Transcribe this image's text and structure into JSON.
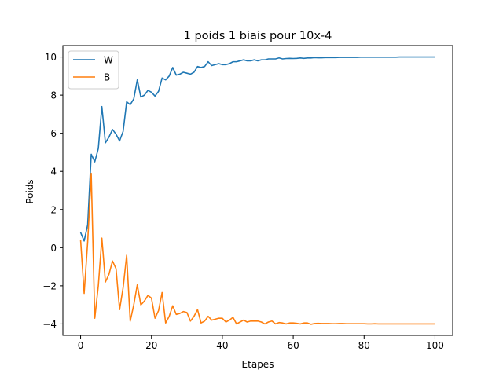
{
  "chart_data": {
    "type": "line",
    "title": "1 poids 1 biais pour 10x-4",
    "xlabel": "Etapes",
    "ylabel": "Poids",
    "xlim": [
      -5,
      105
    ],
    "ylim": [
      -4.6,
      10.6
    ],
    "xticks": [
      0,
      20,
      40,
      60,
      80,
      100
    ],
    "yticks": [
      -4,
      -2,
      0,
      2,
      4,
      6,
      8,
      10
    ],
    "grid": false,
    "legend_position": "top-left",
    "series": [
      {
        "name": "W",
        "color": "#1f77b4",
        "x": [
          0,
          1,
          2,
          3,
          4,
          5,
          6,
          7,
          8,
          9,
          10,
          11,
          12,
          13,
          14,
          15,
          16,
          17,
          18,
          19,
          20,
          21,
          22,
          23,
          24,
          25,
          26,
          27,
          28,
          29,
          30,
          31,
          32,
          33,
          34,
          35,
          36,
          37,
          38,
          39,
          40,
          41,
          42,
          43,
          44,
          45,
          46,
          47,
          48,
          49,
          50,
          51,
          52,
          53,
          54,
          55,
          56,
          57,
          58,
          59,
          60,
          61,
          62,
          63,
          64,
          65,
          66,
          67,
          68,
          69,
          70,
          71,
          72,
          73,
          74,
          75,
          76,
          77,
          78,
          79,
          80,
          81,
          82,
          83,
          84,
          85,
          86,
          87,
          88,
          89,
          90,
          91,
          92,
          93,
          94,
          95,
          96,
          97,
          98,
          99,
          100
        ],
        "values": [
          0.8,
          0.35,
          1.2,
          4.9,
          4.5,
          5.2,
          7.4,
          5.5,
          5.8,
          6.2,
          5.95,
          5.6,
          6.1,
          7.65,
          7.5,
          7.8,
          8.8,
          7.9,
          8.0,
          8.25,
          8.15,
          7.95,
          8.2,
          8.9,
          8.8,
          9.0,
          9.45,
          9.05,
          9.1,
          9.2,
          9.15,
          9.1,
          9.2,
          9.5,
          9.45,
          9.5,
          9.75,
          9.55,
          9.6,
          9.65,
          9.6,
          9.6,
          9.65,
          9.75,
          9.75,
          9.8,
          9.85,
          9.8,
          9.8,
          9.85,
          9.8,
          9.85,
          9.85,
          9.9,
          9.9,
          9.9,
          9.95,
          9.9,
          9.92,
          9.93,
          9.92,
          9.93,
          9.95,
          9.93,
          9.95,
          9.95,
          9.97,
          9.96,
          9.96,
          9.97,
          9.97,
          9.97,
          9.97,
          9.98,
          9.98,
          9.98,
          9.98,
          9.98,
          9.98,
          9.99,
          9.99,
          9.99,
          9.99,
          9.99,
          9.99,
          9.99,
          9.99,
          9.99,
          9.99,
          9.99,
          10.0,
          10.0,
          10.0,
          10.0,
          10.0,
          10.0,
          10.0,
          10.0,
          10.0,
          10.0,
          10.0
        ]
      },
      {
        "name": "B",
        "color": "#ff7f0e",
        "x": [
          0,
          1,
          2,
          3,
          4,
          5,
          6,
          7,
          8,
          9,
          10,
          11,
          12,
          13,
          14,
          15,
          16,
          17,
          18,
          19,
          20,
          21,
          22,
          23,
          24,
          25,
          26,
          27,
          28,
          29,
          30,
          31,
          32,
          33,
          34,
          35,
          36,
          37,
          38,
          39,
          40,
          41,
          42,
          43,
          44,
          45,
          46,
          47,
          48,
          49,
          50,
          51,
          52,
          53,
          54,
          55,
          56,
          57,
          58,
          59,
          60,
          61,
          62,
          63,
          64,
          65,
          66,
          67,
          68,
          69,
          70,
          71,
          72,
          73,
          74,
          75,
          76,
          77,
          78,
          79,
          80,
          81,
          82,
          83,
          84,
          85,
          86,
          87,
          88,
          89,
          90,
          91,
          92,
          93,
          94,
          95,
          96,
          97,
          98,
          99,
          100
        ],
        "values": [
          0.4,
          -2.4,
          0.3,
          3.9,
          -3.7,
          -2.0,
          0.5,
          -1.8,
          -1.4,
          -0.7,
          -1.1,
          -3.25,
          -2.1,
          -0.4,
          -3.85,
          -3.0,
          -1.95,
          -3.0,
          -2.8,
          -2.5,
          -2.65,
          -3.7,
          -3.3,
          -2.35,
          -3.95,
          -3.6,
          -3.05,
          -3.5,
          -3.45,
          -3.35,
          -3.4,
          -3.85,
          -3.6,
          -3.25,
          -3.95,
          -3.85,
          -3.6,
          -3.8,
          -3.75,
          -3.7,
          -3.7,
          -3.9,
          -3.8,
          -3.65,
          -4.0,
          -3.9,
          -3.8,
          -3.9,
          -3.85,
          -3.85,
          -3.85,
          -3.9,
          -4.0,
          -3.9,
          -3.85,
          -4.0,
          -3.93,
          -3.95,
          -4.0,
          -3.95,
          -3.95,
          -3.97,
          -4.0,
          -3.95,
          -3.95,
          -4.02,
          -3.98,
          -3.97,
          -3.98,
          -3.98,
          -3.98,
          -3.99,
          -3.99,
          -3.98,
          -3.98,
          -3.99,
          -3.99,
          -3.99,
          -3.99,
          -3.99,
          -3.99,
          -4.0,
          -4.0,
          -3.99,
          -4.0,
          -4.0,
          -4.0,
          -4.0,
          -4.0,
          -4.0,
          -4.0,
          -4.0,
          -4.0,
          -4.0,
          -4.0,
          -4.0,
          -4.0,
          -4.0,
          -4.0,
          -4.0,
          -4.0
        ]
      }
    ]
  }
}
